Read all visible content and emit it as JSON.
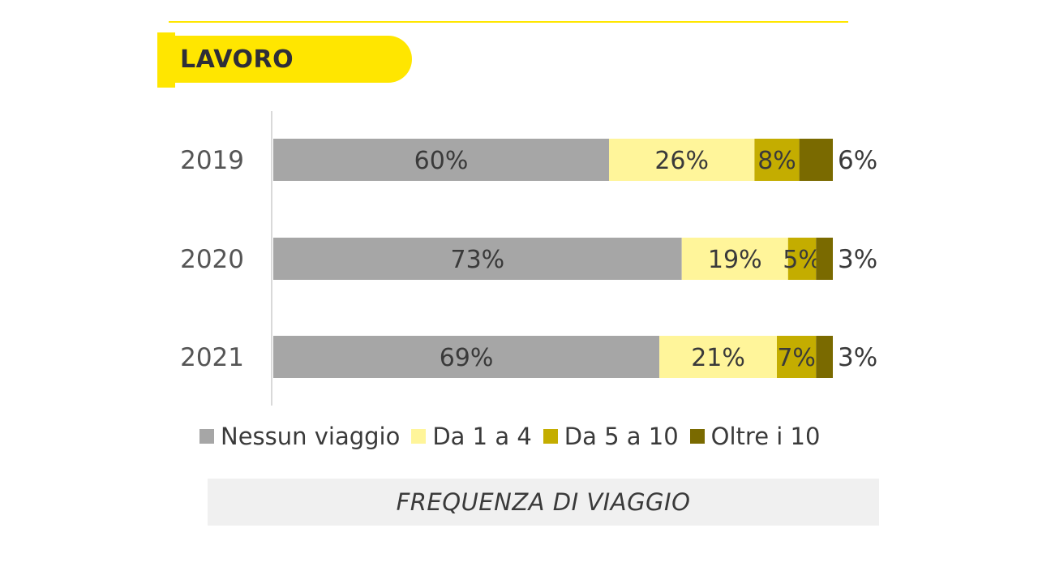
{
  "section": {
    "title": "LAVORO"
  },
  "caption": "FREQUENZA DI VIAGGIO",
  "colors": {
    "accent": "#ffe600",
    "nessun": "#a6a6a6",
    "da1a4": "#fff59a",
    "da5a10": "#c4ad00",
    "oltre10": "#7a6a00",
    "label": "#3a3a3a"
  },
  "chart_data": {
    "type": "bar",
    "orientation": "horizontal",
    "stacked": true,
    "categories": [
      "2019",
      "2020",
      "2021"
    ],
    "series": [
      {
        "name": "Nessun viaggio",
        "values": [
          60,
          73,
          69
        ],
        "labels": [
          "60%",
          "73%",
          "69%"
        ]
      },
      {
        "name": "Da 1 a 4",
        "values": [
          26,
          19,
          21
        ],
        "labels": [
          "26%",
          "19%",
          "21%"
        ]
      },
      {
        "name": "Da 5 a 10",
        "values": [
          8,
          5,
          7
        ],
        "labels": [
          "8%",
          "5%",
          "7%"
        ]
      },
      {
        "name": "Oltre i 10",
        "values": [
          6,
          3,
          3
        ],
        "labels": [
          "6%",
          "3%",
          "3%"
        ]
      }
    ],
    "xlim": [
      0,
      100
    ],
    "grid": false,
    "legend_position": "bottom"
  }
}
